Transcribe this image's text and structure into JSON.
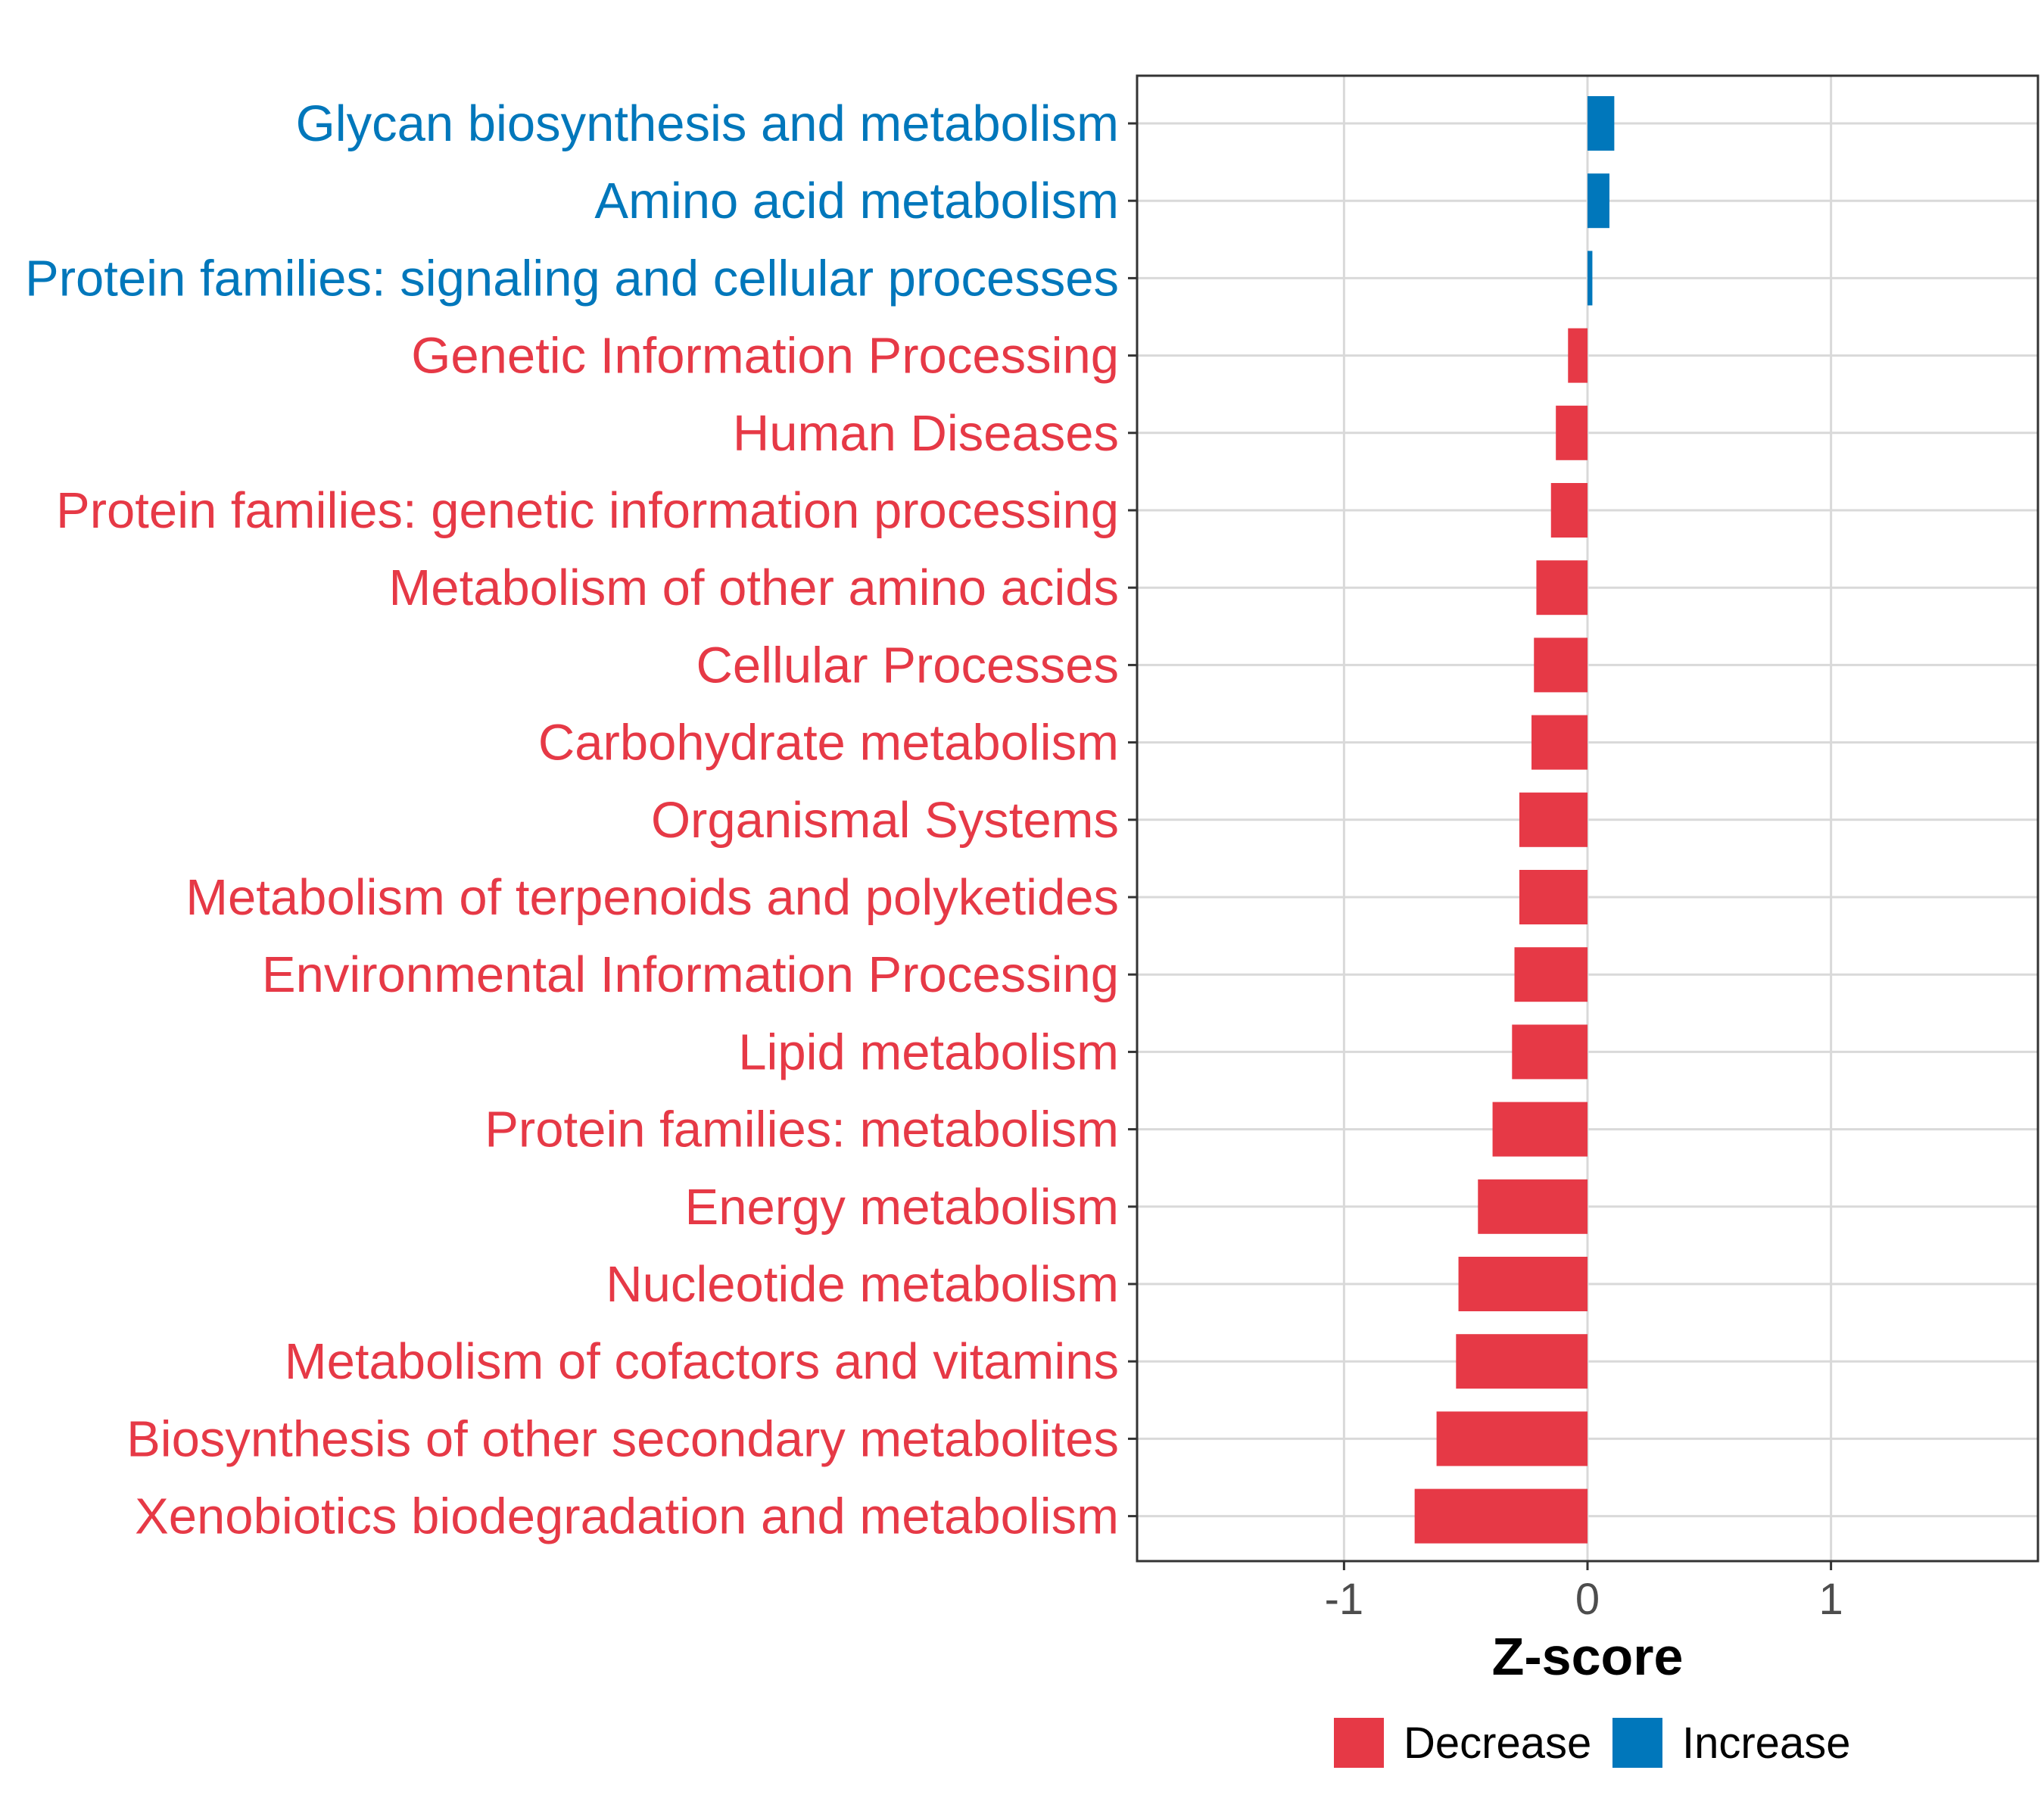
{
  "chart_data": {
    "type": "bar",
    "orientation": "horizontal",
    "xlabel": "Z-score",
    "xlim": [
      -1.85,
      1.85
    ],
    "xticks": [
      -1,
      0,
      1
    ],
    "xtick_labels": [
      "-1",
      "0",
      "1"
    ],
    "grid": true,
    "categories": [
      "Glycan biosynthesis and metabolism",
      "Amino acid metabolism",
      "Protein families: signaling and cellular processes",
      "Genetic Information Processing",
      "Human Diseases",
      "Protein families: genetic information processing",
      "Metabolism of other amino acids",
      "Cellular Processes",
      "Carbohydrate metabolism",
      "Organismal Systems",
      "Metabolism of terpenoids and polyketides",
      "Environmental Information Processing",
      "Lipid metabolism",
      "Protein families: metabolism",
      "Energy metabolism",
      "Nucleotide metabolism",
      "Metabolism of cofactors and vitamins",
      "Biosynthesis of other secondary metabolites",
      "Xenobiotics biodegradation and metabolism"
    ],
    "values": [
      0.11,
      0.09,
      0.02,
      -0.08,
      -0.13,
      -0.15,
      -0.21,
      -0.22,
      -0.23,
      -0.28,
      -0.28,
      -0.3,
      -0.31,
      -0.39,
      -0.45,
      -0.53,
      -0.54,
      -0.62,
      -0.71
    ],
    "groups": [
      "Increase",
      "Increase",
      "Increase",
      "Decrease",
      "Decrease",
      "Decrease",
      "Decrease",
      "Decrease",
      "Decrease",
      "Decrease",
      "Decrease",
      "Decrease",
      "Decrease",
      "Decrease",
      "Decrease",
      "Decrease",
      "Decrease",
      "Decrease",
      "Decrease"
    ],
    "legend": {
      "position": "bottom",
      "entries": [
        {
          "label": "Decrease",
          "color": "#e63946"
        },
        {
          "label": "Increase",
          "color": "#0077bb"
        }
      ]
    }
  }
}
